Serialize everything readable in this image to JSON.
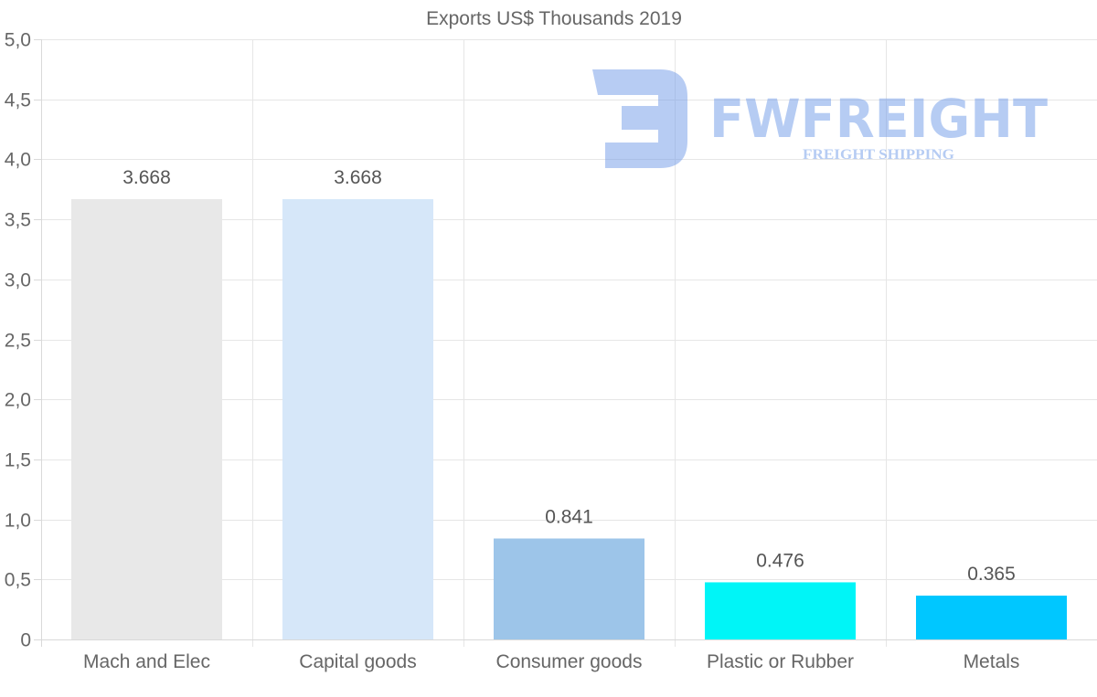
{
  "chart_data": {
    "type": "bar",
    "title": "Exports US$ Thousands 2019",
    "categories": [
      "Mach and Elec",
      "Capital goods",
      "Consumer goods",
      "Plastic or Rubber",
      "Metals"
    ],
    "values": [
      3.668,
      3.668,
      0.841,
      0.476,
      0.365
    ],
    "value_labels": [
      "3.668",
      "3.668",
      "0.841",
      "0.476",
      "0.365"
    ],
    "bar_colors": [
      "#e8e8e8",
      "#d6e7f9",
      "#9dc5e9",
      "#00f5f7",
      "#00c7ff"
    ],
    "ylim": [
      0,
      5
    ],
    "yticks": [
      0,
      0.5,
      1,
      1.5,
      2,
      2.5,
      3,
      3.5,
      4,
      4.5,
      5
    ],
    "ytick_labels": [
      "0",
      "0,5",
      "1,0",
      "1,5",
      "2,0",
      "2,5",
      "3,0",
      "3,5",
      "4,0",
      "4,5",
      "5,0"
    ],
    "xlabel": "",
    "ylabel": "",
    "grid": true,
    "legend": "none"
  },
  "watermark": {
    "brand": "FWFREIGHT",
    "tagline": "FREIGHT SHIPPING",
    "color": "#6f9ae8"
  }
}
